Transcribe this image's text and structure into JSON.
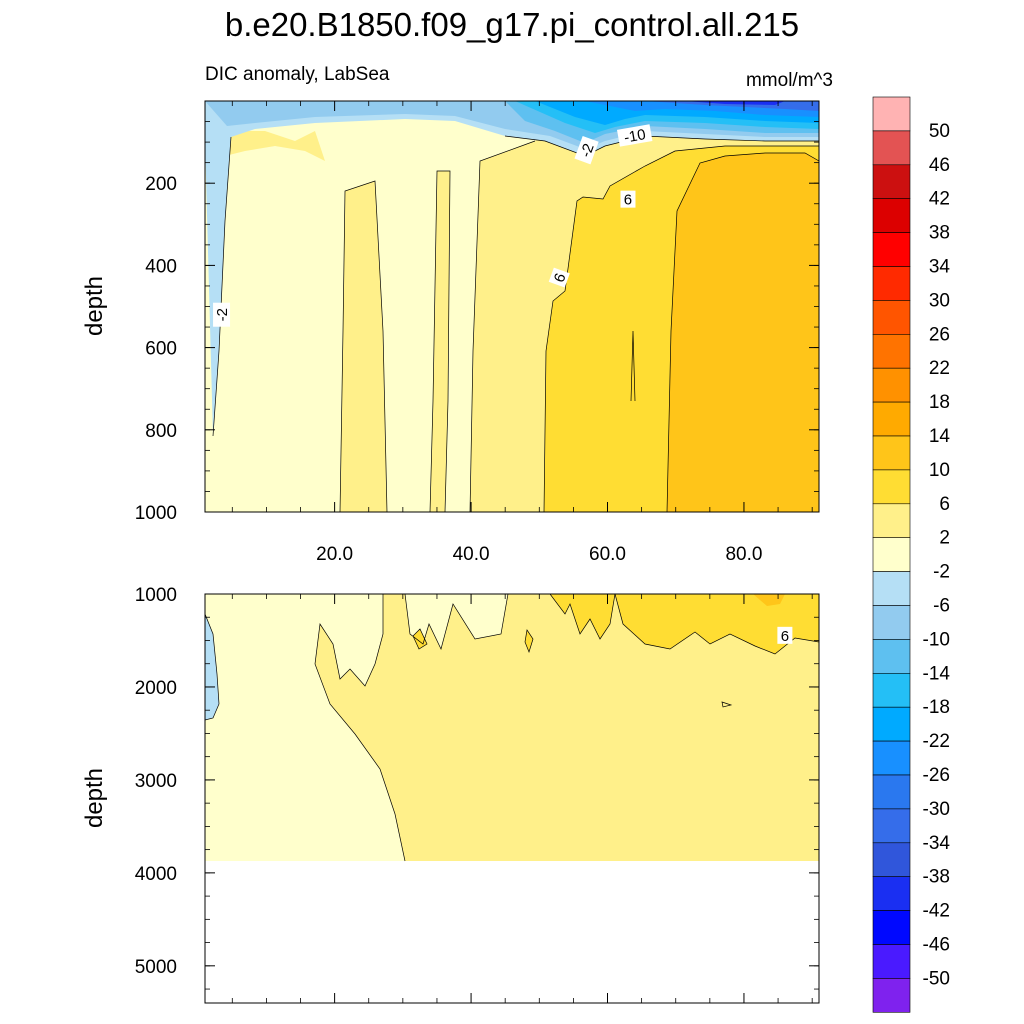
{
  "chart_data": {
    "type": "heatmap",
    "title": "b.e20.B1850.f09_g17.pi_control.all.215",
    "subtitle_left": "DIC anomaly, LabSea",
    "units": "mmol/m^3",
    "xlim": [
      1,
      91
    ],
    "x_ticks": [
      "20.0",
      "40.0",
      "60.0",
      "80.0"
    ],
    "x_tick_values": [
      20,
      40,
      60,
      80
    ],
    "panels": [
      {
        "name": "upper",
        "ylabel": "depth",
        "ylim": [
          0,
          1000
        ],
        "y_ticks": [
          "200",
          "400",
          "600",
          "800",
          "1000"
        ],
        "y_tick_values": [
          200,
          400,
          600,
          800,
          1000
        ],
        "contour_labels": [
          {
            "text": "-2",
            "x": 3.5,
            "y": 520,
            "rotate": -90
          },
          {
            "text": "-2",
            "x": 57,
            "y": 120,
            "rotate": -70
          },
          {
            "text": "-10",
            "x": 64,
            "y": 85,
            "rotate": -10
          },
          {
            "text": "6",
            "x": 63,
            "y": 240,
            "rotate": 0
          },
          {
            "text": "6",
            "x": 53,
            "y": 430,
            "rotate": -70
          }
        ]
      },
      {
        "name": "lower",
        "ylabel": "depth",
        "ylim": [
          1000,
          5400
        ],
        "y_ticks": [
          "1000",
          "2000",
          "3000",
          "4000",
          "5000"
        ],
        "y_tick_values": [
          1000,
          2000,
          3000,
          4000,
          5000
        ],
        "contour_labels": [
          {
            "text": "6",
            "x": 86,
            "y": 1450,
            "rotate": 0
          }
        ]
      }
    ],
    "colorbar": {
      "labels": [
        "50",
        "46",
        "42",
        "38",
        "34",
        "30",
        "26",
        "22",
        "18",
        "14",
        "10",
        "6",
        "2",
        "-2",
        "-6",
        "-10",
        "-14",
        "-18",
        "-22",
        "-26",
        "-30",
        "-34",
        "-38",
        "-42",
        "-46",
        "-50"
      ],
      "colors": [
        "#ffb3b3",
        "#e35353",
        "#cc1010",
        "#dc0000",
        "#ff0000",
        "#ff2a00",
        "#ff5500",
        "#ff7300",
        "#ff9100",
        "#ffaa00",
        "#ffc519",
        "#ffdd33",
        "#fff08a",
        "#ffffcc",
        "#b5dff5",
        "#92cbef",
        "#5ec0f0",
        "#24bff6",
        "#00aaff",
        "#1890ff",
        "#2a78ef",
        "#356dea",
        "#3056db",
        "#1a2ff2",
        "#0008ff",
        "#4a1aff",
        "#7f22ee"
      ]
    },
    "levels": {
      "c_m2": "#ffffcc",
      "c_2": "#fff08a",
      "c_6": "#ffdd33",
      "c_10": "#ffc519",
      "c_neg2": "#b5dff5",
      "c_neg6": "#92cbef",
      "c_neg10": "#5ec0f0",
      "c_neg14": "#24bff6",
      "c_neg18": "#00aaff",
      "c_neg22": "#1890ff",
      "c_neg30": "#356dea",
      "c_neg38": "#1a2ff2"
    }
  }
}
